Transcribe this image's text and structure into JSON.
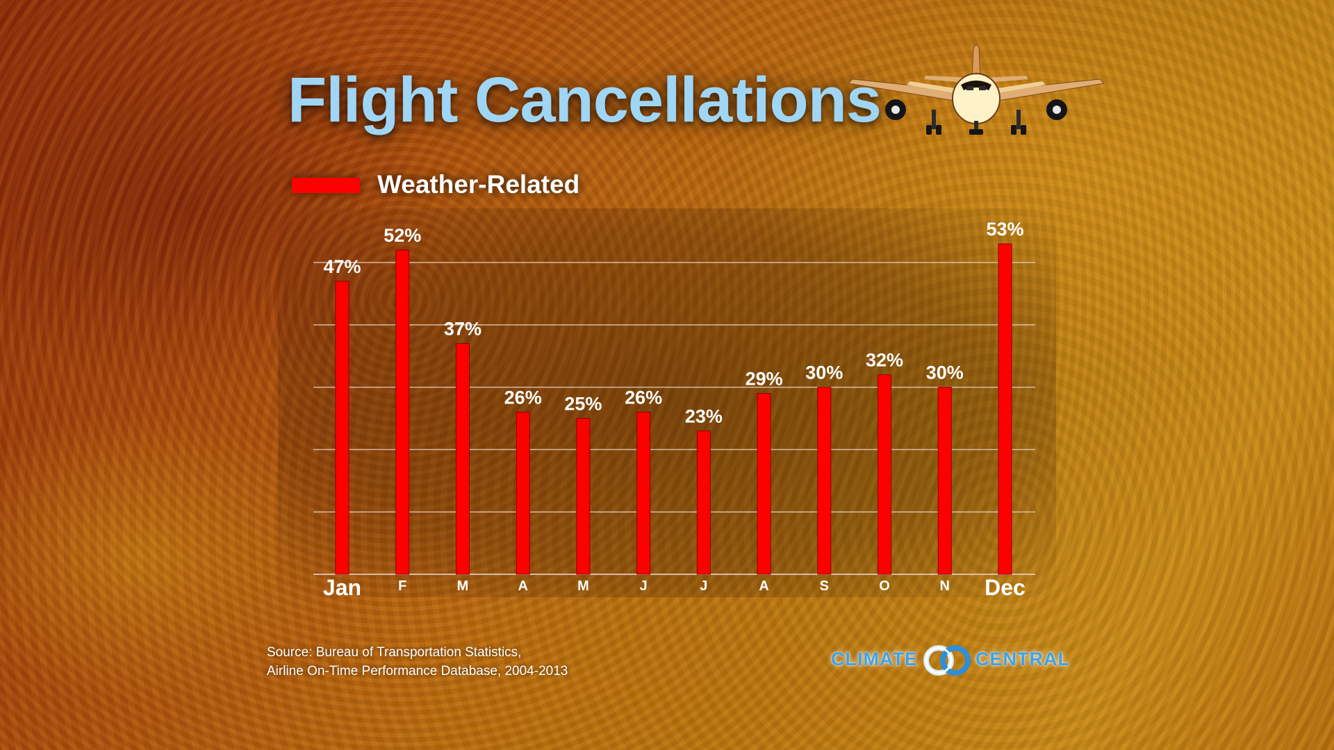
{
  "title": "Flight Cancellations",
  "legend": {
    "label": "Weather-Related",
    "color": "#ff0000"
  },
  "chart_data": {
    "type": "bar",
    "title": "Flight Cancellations",
    "series": [
      {
        "name": "Weather-Related",
        "values": [
          47,
          52,
          37,
          26,
          25,
          26,
          23,
          29,
          30,
          32,
          30,
          53
        ]
      }
    ],
    "categories": [
      "Jan",
      "F",
      "M",
      "A",
      "M",
      "J",
      "J",
      "A",
      "S",
      "O",
      "N",
      "Dec"
    ],
    "value_labels": [
      "47%",
      "52%",
      "37%",
      "26%",
      "25%",
      "26%",
      "23%",
      "29%",
      "30%",
      "32%",
      "30%",
      "53%"
    ],
    "ylim": [
      0,
      50
    ],
    "yticks": [
      0,
      10,
      20,
      30,
      40,
      50
    ],
    "grid": true,
    "xlabel": "",
    "ylabel": "",
    "bar_color": "#ff0000",
    "grid_color": "#e6cfc0"
  },
  "source": {
    "line1": "Source: Bureau of Transportation Statistics,",
    "line2": "Airline On-Time Performance Database, 2004-2013"
  },
  "brand": {
    "left": "CLIMATE",
    "right": "CENTRAL",
    "color": "#3fa2e3"
  }
}
